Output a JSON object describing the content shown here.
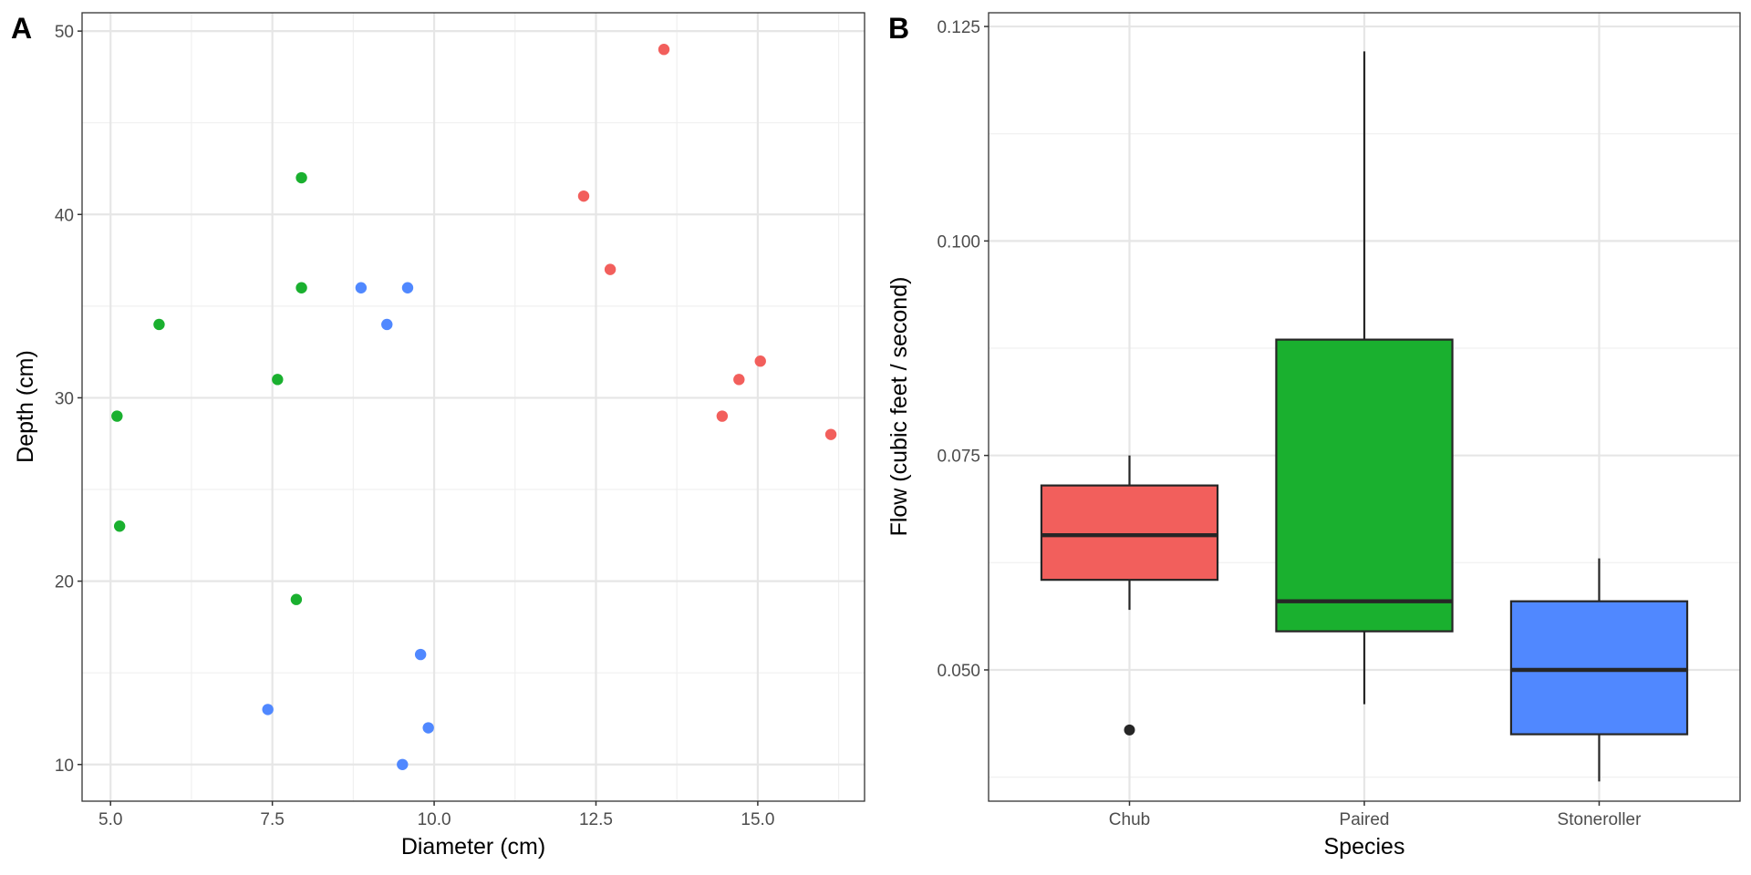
{
  "chart_data": [
    {
      "type": "scatter",
      "panel_tag": "A",
      "title": "",
      "xlabel": "Diameter (cm)",
      "ylabel": "Depth (cm)",
      "xlim": [
        4.56,
        16.65
      ],
      "ylim": [
        8.0,
        51.0
      ],
      "xticks": [
        5.0,
        7.5,
        10.0,
        12.5,
        15.0
      ],
      "xtick_labels": [
        "5.0",
        "7.5",
        "10.0",
        "12.5",
        "15.0"
      ],
      "yticks": [
        10,
        20,
        30,
        40,
        50
      ],
      "ytick_labels": [
        "10",
        "20",
        "30",
        "40",
        "50"
      ],
      "grid": true,
      "legend": "none",
      "series": [
        {
          "name": "Chub",
          "color": "#F25F5C",
          "x": [
            13.55,
            12.31,
            12.72,
            15.04,
            14.71,
            14.45,
            16.13
          ],
          "y": [
            49,
            41,
            37,
            32,
            31,
            29,
            28
          ]
        },
        {
          "name": "Paired",
          "color": "#1AB02F",
          "x": [
            7.95,
            7.95,
            5.75,
            7.58,
            5.1,
            5.14,
            7.87
          ],
          "y": [
            42,
            36,
            34,
            31,
            29,
            23,
            19
          ]
        },
        {
          "name": "Stoneroller",
          "color": "#5088FF",
          "x": [
            8.87,
            9.59,
            9.27,
            9.79,
            7.43,
            9.91,
            9.51
          ],
          "y": [
            36,
            36,
            34,
            16,
            13,
            12,
            10
          ]
        }
      ]
    },
    {
      "type": "box",
      "panel_tag": "B",
      "title": "",
      "xlabel": "Species",
      "ylabel": "Flow (cubic feet / second)",
      "ylim": [
        0.0347,
        0.1266
      ],
      "yticks": [
        0.05,
        0.075,
        0.1,
        0.125
      ],
      "ytick_labels": [
        "0.050",
        "0.075",
        "0.100",
        "0.125"
      ],
      "categories": [
        "Chub",
        "Paired",
        "Stoneroller"
      ],
      "grid": true,
      "legend": "none",
      "boxes": [
        {
          "name": "Chub",
          "color": "#F25F5C",
          "whisker_low": 0.057,
          "q1": 0.0605,
          "median": 0.0657,
          "q3": 0.0715,
          "whisker_high": 0.075,
          "outliers": [
            0.043
          ]
        },
        {
          "name": "Paired",
          "color": "#1AB02F",
          "whisker_low": 0.046,
          "q1": 0.0545,
          "median": 0.058,
          "q3": 0.0885,
          "whisker_high": 0.1221,
          "outliers": []
        },
        {
          "name": "Stoneroller",
          "color": "#5088FF",
          "whisker_low": 0.037,
          "q1": 0.0425,
          "median": 0.05,
          "q3": 0.058,
          "whisker_high": 0.063,
          "outliers": []
        }
      ]
    }
  ]
}
